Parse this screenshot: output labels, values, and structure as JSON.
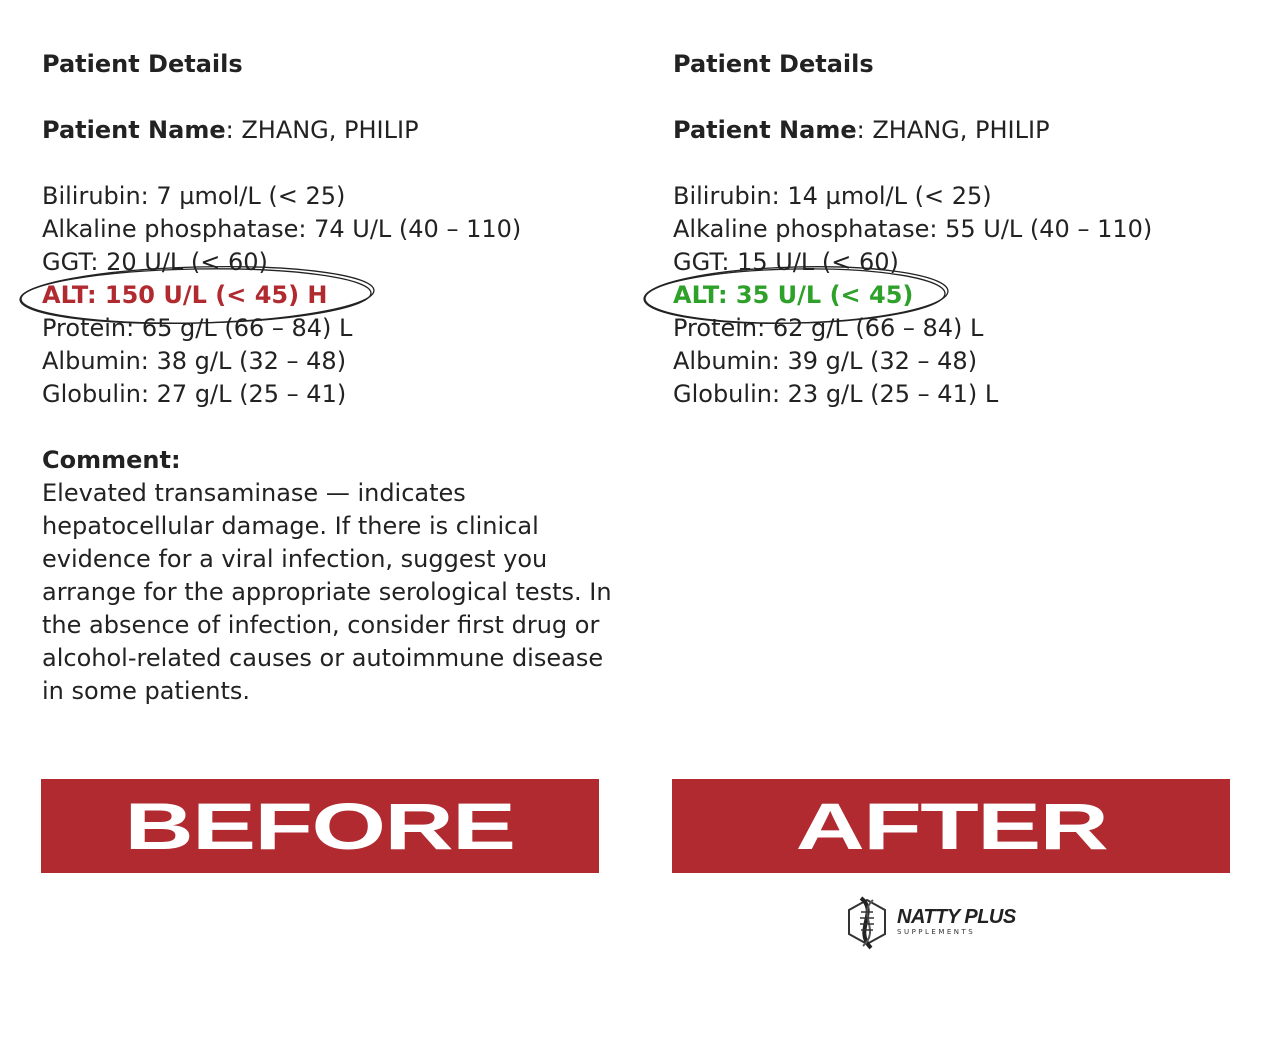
{
  "before": {
    "heading": "Patient Details",
    "name_label": "Patient Name",
    "name_value": ": ZHANG, PHILIP",
    "results": [
      "Bilirubin: 7 µmol/L (< 25)",
      "Alkaline phosphatase: 74 U/L (40 – 110)",
      "GGT: 20 U/L (< 60)",
      "ALT: 150 U/L (< 45) H",
      "Protein: 65 g/L (66 – 84) L",
      "Albumin: 38 g/L (32 – 48)",
      "Globulin: 27 g/L (25 – 41)"
    ],
    "comment_label": "Comment:",
    "comment": "Elevated transaminase — indicates hepatocellular damage. If there is clinical evidence for a viral infection, suggest you arrange for the appropriate serological tests. In the absence of infection, consider first drug or alcohol-related causes or autoimmune disease in some patients.",
    "banner": "BEFORE",
    "alt_color": "#b02a30"
  },
  "after": {
    "heading": "Patient Details",
    "name_label": "Patient Name",
    "name_value": ": ZHANG, PHILIP",
    "results": [
      "Bilirubin: 14 µmol/L (< 25)",
      "Alkaline phosphatase: 55 U/L (40 – 110)",
      "GGT: 15 U/L (< 60)",
      "ALT: 35 U/L (< 45)",
      "Protein: 62 g/L (66 – 84) L",
      "Albumin: 39 g/L (32 – 48)",
      "Globulin: 23 g/L (25 – 41) L"
    ],
    "banner": "AFTER",
    "alt_color": "#2ea12a"
  },
  "logo": {
    "brand": "NATTY PLUS",
    "sub": "SUPPLEMENTS"
  },
  "banner_color": "#b02a30"
}
